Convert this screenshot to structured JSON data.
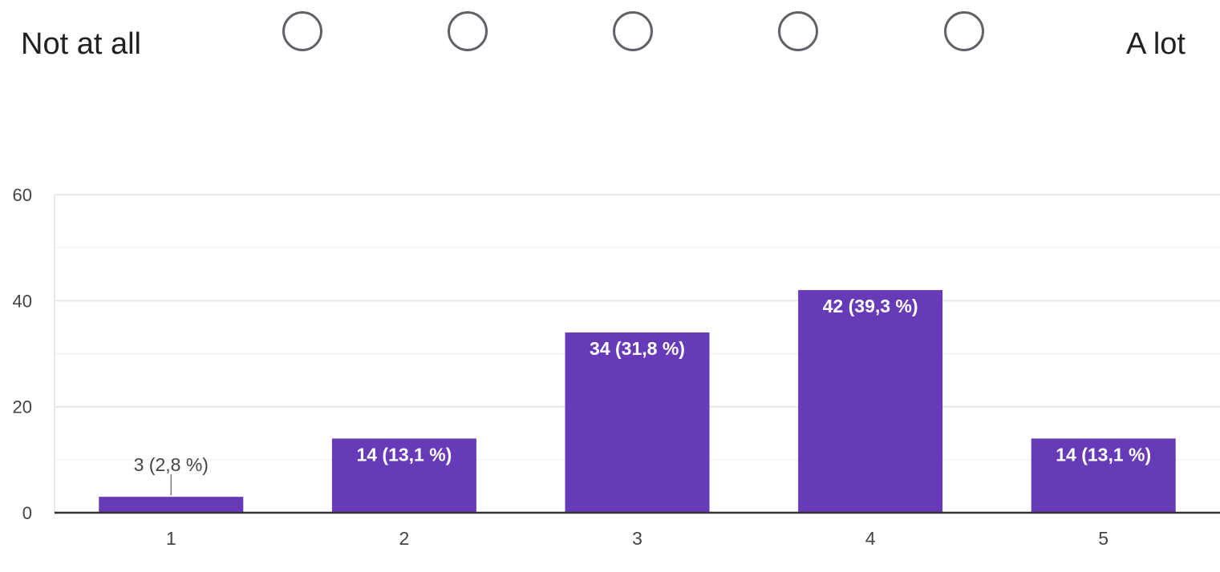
{
  "scale": {
    "low_label": "Not at all",
    "high_label": "A lot",
    "options": [
      1,
      2,
      3,
      4,
      5
    ]
  },
  "colors": {
    "bar": "#673ab7",
    "grid": "#e8e8e8",
    "axis": "#333333",
    "tick_text": "#444444",
    "radio_border": "#5f6368"
  },
  "chart_data": {
    "type": "bar",
    "categories": [
      "1",
      "2",
      "3",
      "4",
      "5"
    ],
    "values": [
      3,
      14,
      34,
      42,
      14
    ],
    "data_labels": [
      "3 (2,8 %)",
      "14 (13,1 %)",
      "34 (31,8 %)",
      "42 (39,3 %)",
      "14 (13,1 %)"
    ],
    "yticks": [
      0,
      20,
      40,
      60
    ],
    "ylim": [
      0,
      60
    ],
    "title": "",
    "xlabel": "",
    "ylabel": "",
    "grid": true,
    "legend": "none"
  }
}
